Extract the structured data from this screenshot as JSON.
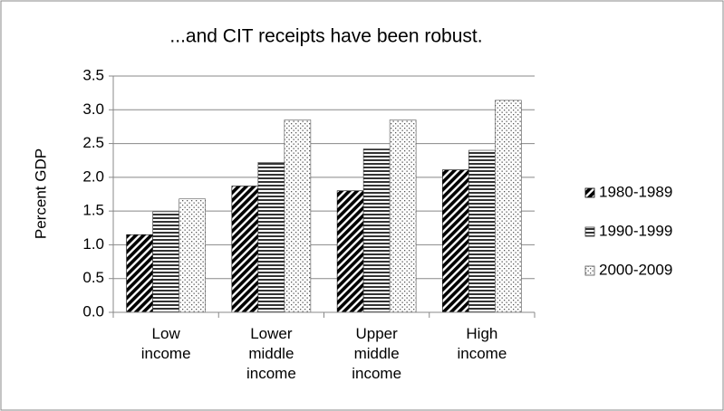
{
  "chart_data": {
    "type": "bar",
    "title": "...and CIT receipts have been robust.",
    "y_label": "Percent GDP",
    "categories": [
      "Low income",
      "Lower middle income",
      "Upper middle income",
      "High income"
    ],
    "series": [
      {
        "name": "1980-1989",
        "color": "#000000",
        "pattern": "diagonal",
        "values": [
          1.15,
          1.87,
          1.8,
          2.11
        ]
      },
      {
        "name": "1990-1999",
        "color": "#333333",
        "pattern": "horizontal",
        "values": [
          1.49,
          2.22,
          2.42,
          2.4
        ]
      },
      {
        "name": "2000-2009",
        "color": "#555555",
        "pattern": "dots",
        "values": [
          1.68,
          2.85,
          2.85,
          3.14
        ]
      }
    ],
    "ylim": [
      0,
      3.5
    ],
    "yticks": [
      {
        "value": 0,
        "label": "0.0"
      },
      0.5,
      {
        "value": 1,
        "label": "1.0"
      },
      1.5,
      {
        "value": 2,
        "label": "2.0"
      },
      2.5,
      {
        "value": 3,
        "label": "3.0"
      },
      3.5
    ],
    "grid": true,
    "legend": "right"
  }
}
